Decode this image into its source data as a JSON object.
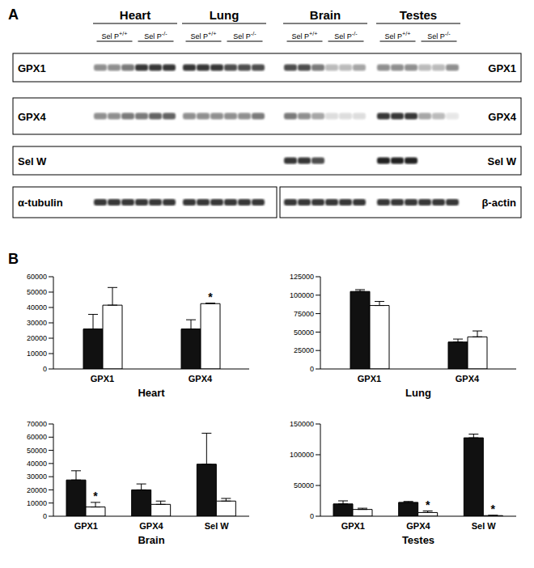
{
  "panel_labels": [
    "A",
    "B"
  ],
  "blot": {
    "tissues": [
      "Heart",
      "Lung",
      "Brain",
      "Testes"
    ],
    "genotypes": [
      "Sel P+/+",
      "Sel P-/-"
    ],
    "rows": [
      {
        "label": "GPX1",
        "right_label": "GPX1"
      },
      {
        "label": "GPX4",
        "right_label": "GPX4"
      },
      {
        "label": "Sel W",
        "right_label": "Sel W"
      }
    ],
    "loading_controls": {
      "left": "α-tubulin",
      "right": "β-actin"
    }
  },
  "chart_data": [
    {
      "type": "bar",
      "title": "Heart",
      "categories": [
        "GPX1",
        "GPX4"
      ],
      "ylim": [
        0,
        60000
      ],
      "yticks": [
        0,
        10000,
        20000,
        30000,
        40000,
        50000,
        60000
      ],
      "grid": false,
      "series": [
        {
          "color": "#111111",
          "values": [
            26000,
            26000
          ],
          "errors": [
            9500,
            6000
          ],
          "annotations": [
            null,
            null
          ]
        },
        {
          "color": "#ffffff",
          "values": [
            41500,
            42500
          ],
          "errors": [
            11500,
            300
          ],
          "annotations": [
            null,
            "*"
          ]
        }
      ]
    },
    {
      "type": "bar",
      "title": "Lung",
      "categories": [
        "GPX1",
        "GPX4"
      ],
      "ylim": [
        0,
        125000
      ],
      "yticks": [
        0,
        25000,
        50000,
        75000,
        100000,
        125000
      ],
      "grid": false,
      "series": [
        {
          "color": "#111111",
          "values": [
            105000,
            36500
          ],
          "errors": [
            2500,
            4000
          ],
          "annotations": [
            null,
            null
          ]
        },
        {
          "color": "#ffffff",
          "values": [
            86000,
            43500
          ],
          "errors": [
            5500,
            8000
          ],
          "annotations": [
            null,
            null
          ]
        }
      ]
    },
    {
      "type": "bar",
      "title": "Brain",
      "categories": [
        "GPX1",
        "GPX4",
        "Sel W"
      ],
      "ylim": [
        0,
        70000
      ],
      "yticks": [
        0,
        10000,
        20000,
        30000,
        40000,
        50000,
        60000,
        70000
      ],
      "grid": false,
      "series": [
        {
          "color": "#111111",
          "values": [
            27500,
            20000,
            39500
          ],
          "errors": [
            7000,
            4500,
            23500
          ],
          "annotations": [
            null,
            null,
            null
          ]
        },
        {
          "color": "#ffffff",
          "values": [
            7000,
            9000,
            11500
          ],
          "errors": [
            3500,
            2500,
            2000
          ],
          "annotations": [
            "*",
            null,
            null
          ]
        }
      ]
    },
    {
      "type": "bar",
      "title": "Testes",
      "categories": [
        "GPX1",
        "GPX4",
        "Sel W"
      ],
      "ylim": [
        0,
        150000
      ],
      "yticks": [
        0,
        50000,
        100000,
        150000
      ],
      "grid": false,
      "series": [
        {
          "color": "#111111",
          "values": [
            20000,
            22500,
            127500
          ],
          "errors": [
            5000,
            1500,
            6000
          ],
          "annotations": [
            null,
            null,
            null
          ]
        },
        {
          "color": "#ffffff",
          "values": [
            11000,
            6000,
            1000
          ],
          "errors": [
            2000,
            2500,
            500
          ],
          "annotations": [
            null,
            "*",
            "*"
          ]
        }
      ]
    }
  ]
}
